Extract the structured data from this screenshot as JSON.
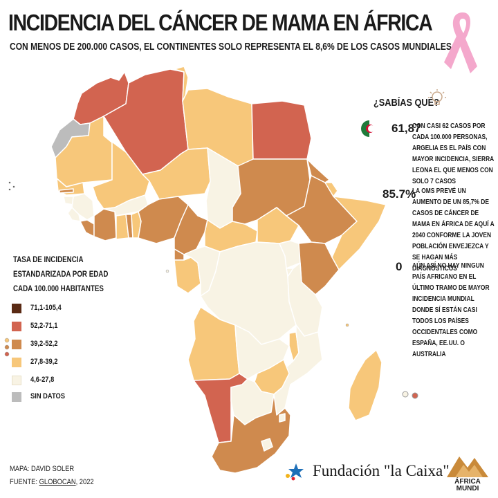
{
  "header": {
    "title": "INCIDENCIA DEL CÁNCER DE MAMA EN ÁFRICA",
    "subtitle": "CON MENOS DE 200.000 CASOS, EL CONTINENTES SOLO REPRESENTA EL 8,6% DE LOS CASOS MUNDIALES"
  },
  "legend": {
    "title_lines": [
      "TASA DE INCIDENCIA",
      "ESTANDARIZADA POR EDAD",
      "CADA 100.000 HABITANTES"
    ],
    "items": [
      {
        "label": "71,1-105,4",
        "color": "#5a2a14"
      },
      {
        "label": "52,2-71,1",
        "color": "#d26450"
      },
      {
        "label": "39,2-52,2",
        "color": "#cf8a4e"
      },
      {
        "label": "27,8-39,2",
        "color": "#f7c77a"
      },
      {
        "label": "4,6-27,8",
        "color": "#f8f3e4"
      },
      {
        "label": "SIN DATOS",
        "color": "#bcbcbc"
      }
    ]
  },
  "facts": {
    "title": "¿SABÍAS QUÉ?",
    "items": [
      {
        "big": "61,87",
        "text": "CON CASI 62 CASOS POR CADA 100.000 PERSONAS, ARGELIA ES EL PAÍS CON MAYOR INCIDENCIA, SIERRA LEONA EL QUE MENOS CON SOLO 7 CASOS"
      },
      {
        "big": "85.7%",
        "text": "LA OMS PREVÉ UN AUMENTO DE UN 85,7% DE CASOS DE CÁNCER DE MAMA EN ÁFRICA DE AQUÍ A 2040 CONFORME LA JOVEN POBLACIÓN ENVEJEZCA Y SE HAGAN MÁS DIAGNÓSTICOS"
      },
      {
        "big": "0",
        "text": "AÚN ASÍ NO HAY NINGUN PAÍS AFRICANO EN EL ÚLTIMO TRAMO DE MAYOR INCIDENCIA MUNDIAL DONDE SÍ ESTÁN CASI TODOS LOS PAÍSES OCCIDENTALES COMO ESPAÑA, EE.UU. O AUSTRALIA"
      }
    ]
  },
  "credits": {
    "map": "MAPA: DAVID SOLER",
    "source_prefix": "FUENTE: ",
    "source_name": "GLOBOCAN",
    "source_year": ", 2022"
  },
  "logos": {
    "fundacion": "Fundación \"la Caixa\"",
    "africa_mundi_1": "ÁFRICA",
    "africa_mundi_2": "MUNDI"
  },
  "colors": {
    "c1": "#5a2a14",
    "c2": "#d26450",
    "c3": "#cf8a4e",
    "c4": "#f7c77a",
    "c5": "#f8f3e4",
    "nodata": "#bcbcbc",
    "ribbon": "#f4a8cc",
    "caixa_blue": "#1d6fb8"
  }
}
